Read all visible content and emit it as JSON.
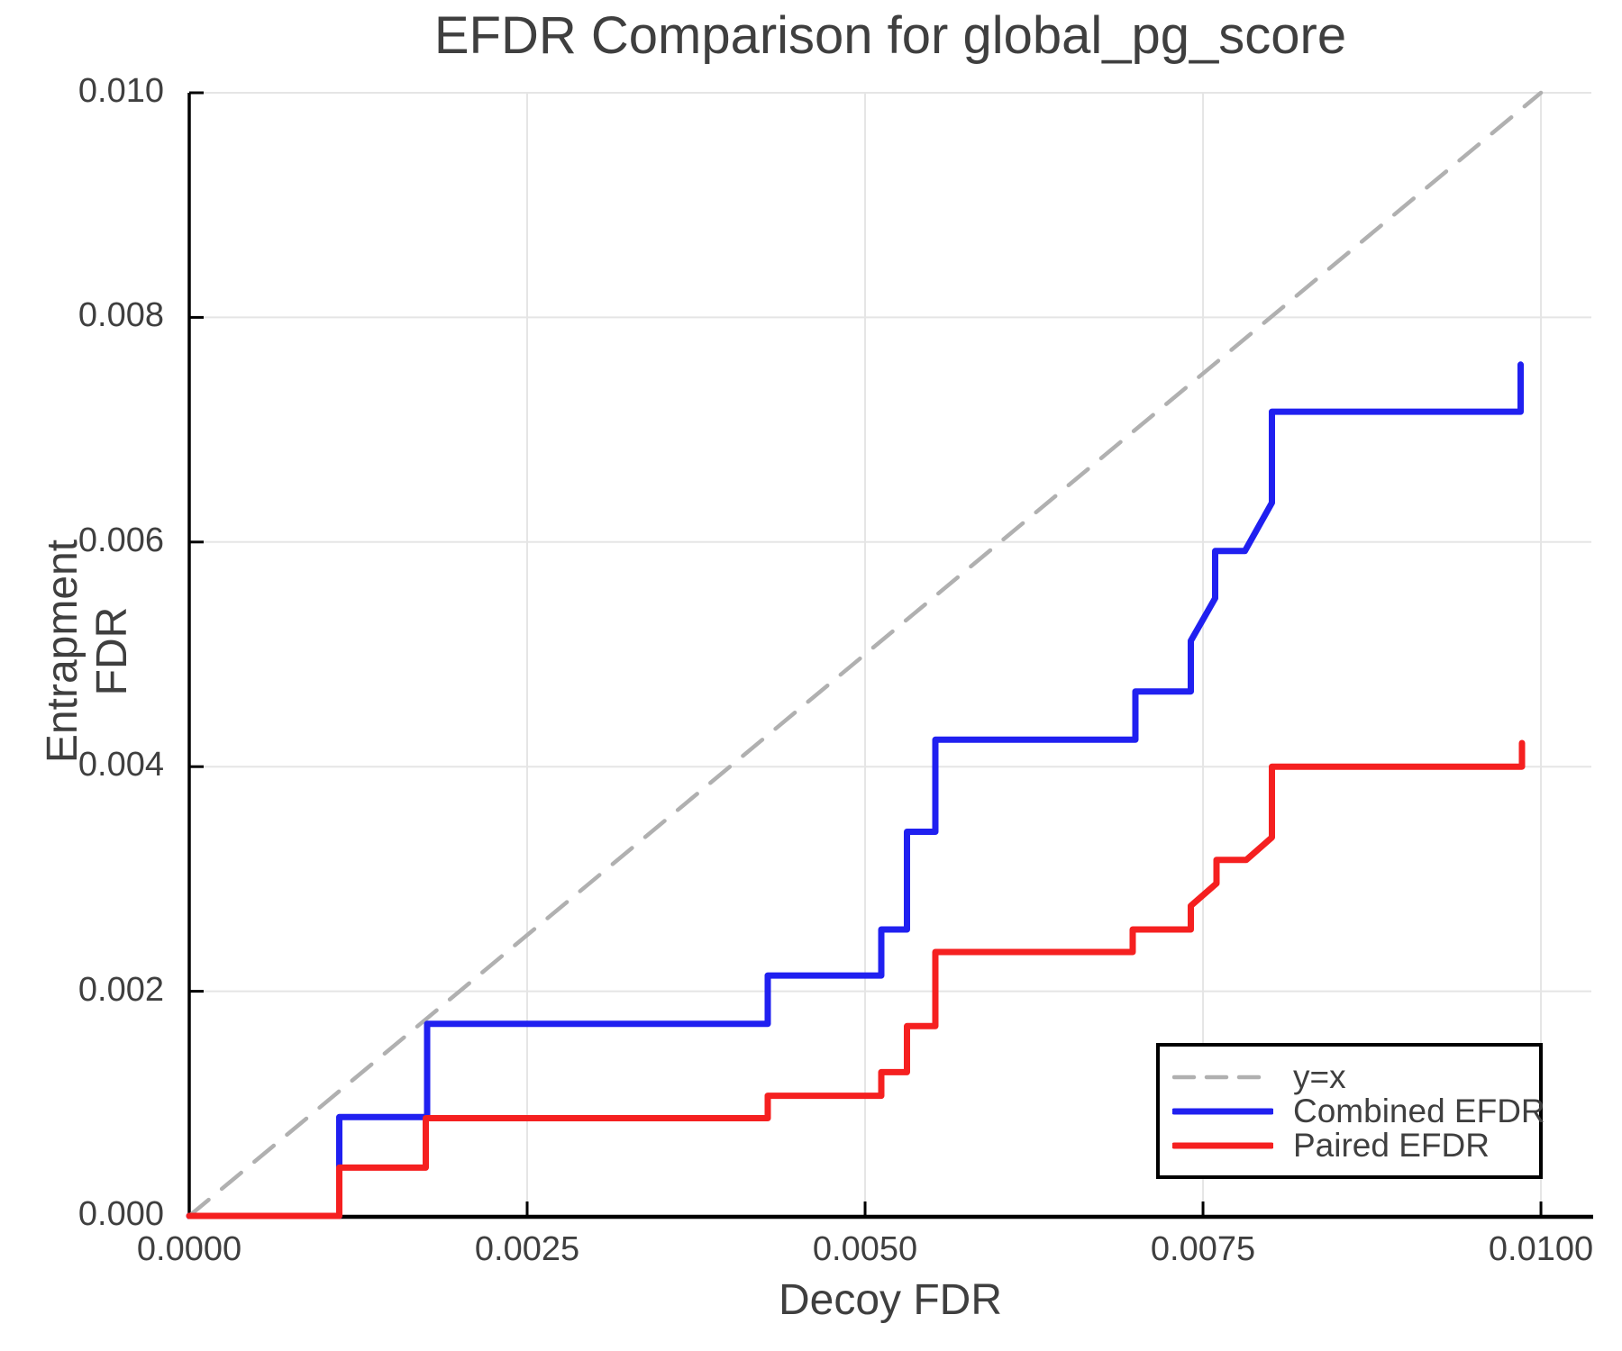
{
  "chart_data": {
    "type": "line",
    "title": "EFDR Comparison for global_pg_score",
    "xlabel": "Decoy FDR",
    "ylabel": "Entrapment FDR",
    "xlim": [
      0,
      0.010373
    ],
    "ylim": [
      0,
      0.01
    ],
    "grid": true,
    "legend_position": "bottom-right",
    "xticks": {
      "values": [
        0,
        0.0025,
        0.005,
        0.0075,
        0.01
      ],
      "labels": [
        "0.0000",
        "0.0025",
        "0.0050",
        "0.0075",
        "0.0100"
      ]
    },
    "yticks": {
      "values": [
        0,
        0.002,
        0.004,
        0.006,
        0.008,
        0.01
      ],
      "labels": [
        "0.000",
        "0.002",
        "0.004",
        "0.006",
        "0.008",
        "0.010"
      ]
    },
    "series": [
      {
        "name": "y=x",
        "style": "dashed",
        "color": "#b0b0b0",
        "width": 4.5,
        "points": [
          [
            0,
            0
          ],
          [
            0.01,
            0.01
          ]
        ]
      },
      {
        "name": "Combined EFDR",
        "style": "solid",
        "color": "#2020f0",
        "width": 7,
        "points": [
          [
            0,
            0
          ],
          [
            0.00111,
            0
          ],
          [
            0.00111,
            0.00088
          ],
          [
            0.00176,
            0.00088
          ],
          [
            0.00176,
            0.00171
          ],
          [
            0.00428,
            0.00171
          ],
          [
            0.00428,
            0.00214
          ],
          [
            0.00512,
            0.00214
          ],
          [
            0.00512,
            0.00255
          ],
          [
            0.00531,
            0.00255
          ],
          [
            0.00531,
            0.00342
          ],
          [
            0.00552,
            0.00342
          ],
          [
            0.00552,
            0.00424
          ],
          [
            0.007,
            0.00424
          ],
          [
            0.007,
            0.00467
          ],
          [
            0.00741,
            0.00467
          ],
          [
            0.00741,
            0.00512
          ],
          [
            0.00759,
            0.0055
          ],
          [
            0.00759,
            0.00592
          ],
          [
            0.00781,
            0.00592
          ],
          [
            0.00801,
            0.00635
          ],
          [
            0.00801,
            0.00716
          ],
          [
            0.00985,
            0.00716
          ],
          [
            0.00985,
            0.00758
          ]
        ]
      },
      {
        "name": "Paired EFDR",
        "style": "solid",
        "color": "#f52020",
        "width": 7,
        "points": [
          [
            0,
            0
          ],
          [
            0.00111,
            0
          ],
          [
            0.00111,
            0.00043
          ],
          [
            0.00175,
            0.00043
          ],
          [
            0.00175,
            0.00087
          ],
          [
            0.00428,
            0.00087
          ],
          [
            0.00428,
            0.00107
          ],
          [
            0.00512,
            0.00107
          ],
          [
            0.00512,
            0.00128
          ],
          [
            0.00531,
            0.00128
          ],
          [
            0.00531,
            0.00169
          ],
          [
            0.00552,
            0.00169
          ],
          [
            0.00552,
            0.00235
          ],
          [
            0.00698,
            0.00235
          ],
          [
            0.00698,
            0.00255
          ],
          [
            0.00741,
            0.00255
          ],
          [
            0.00741,
            0.00276
          ],
          [
            0.0076,
            0.00296
          ],
          [
            0.0076,
            0.00317
          ],
          [
            0.00782,
            0.00317
          ],
          [
            0.00801,
            0.00337
          ],
          [
            0.00801,
            0.004
          ],
          [
            0.00986,
            0.004
          ],
          [
            0.00986,
            0.00421
          ]
        ]
      }
    ],
    "colors": {
      "grid": "#e5e5e5",
      "spine": "#000000",
      "text": "#3f3f3f",
      "background": "#ffffff"
    }
  },
  "legend": {
    "entries": [
      "y=x",
      "Combined EFDR",
      "Paired EFDR"
    ]
  }
}
